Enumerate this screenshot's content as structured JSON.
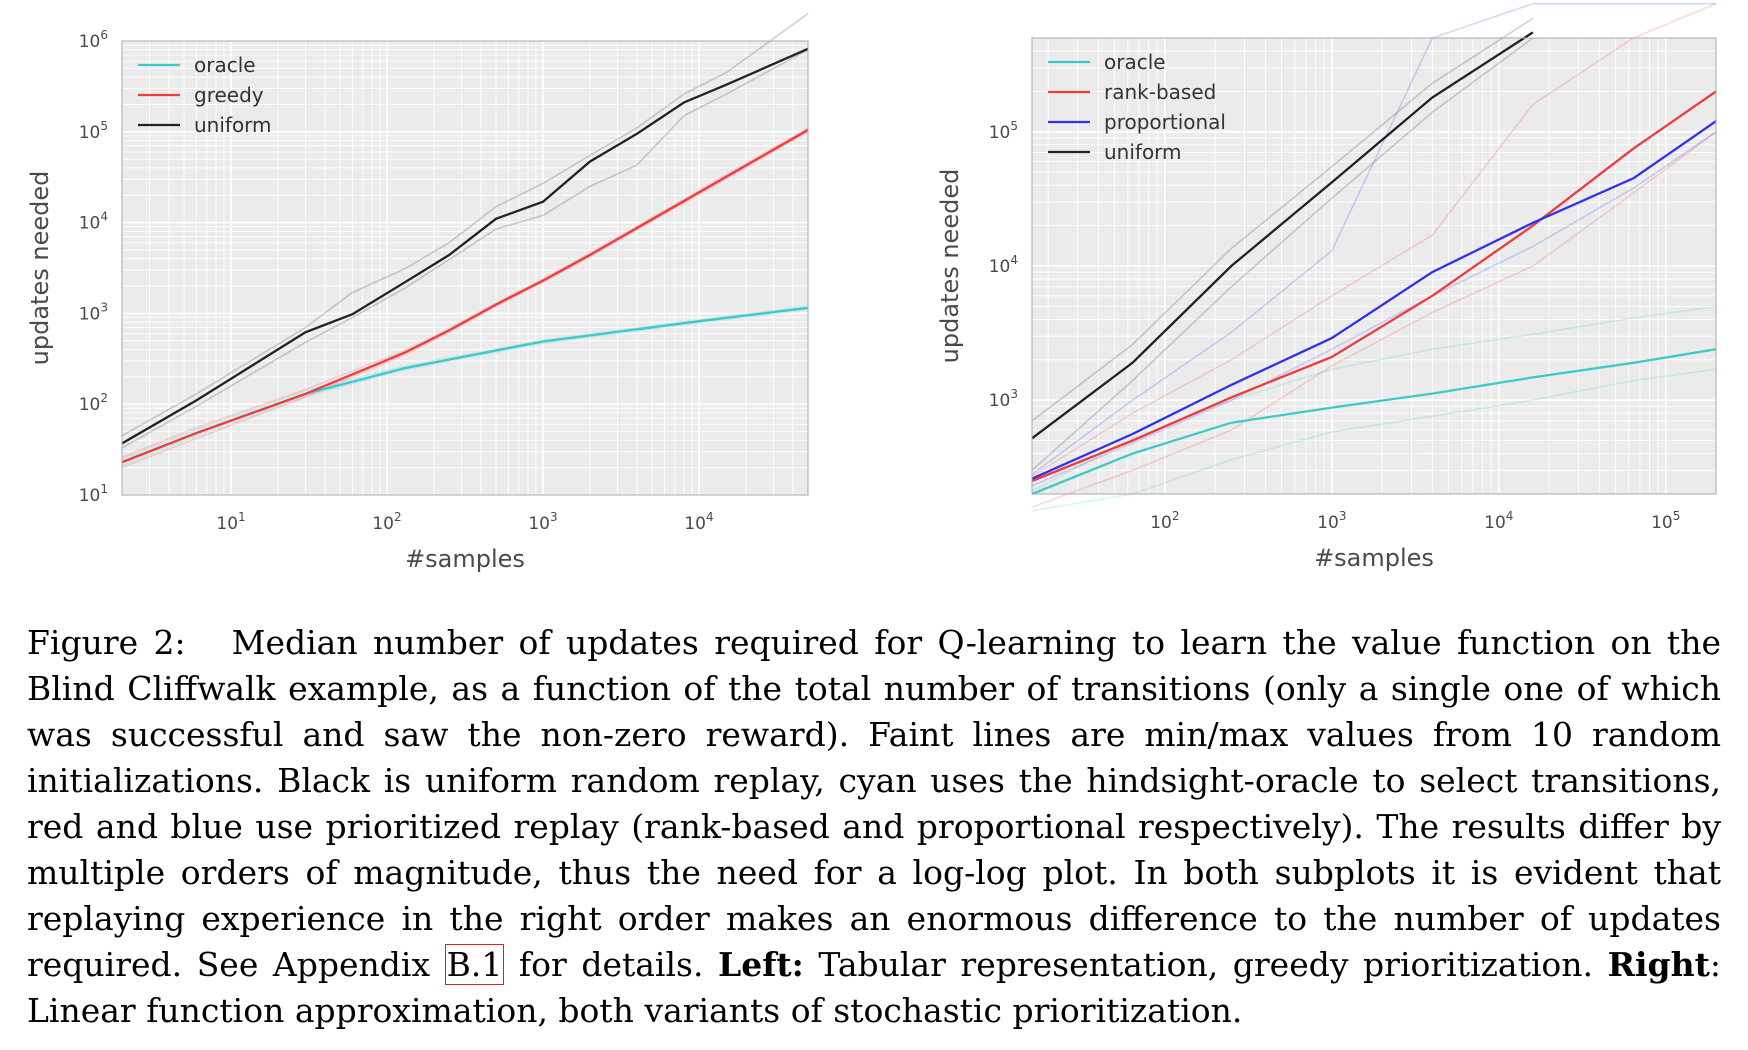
{
  "chart_data": [
    {
      "type": "line",
      "scale": "log-log",
      "grid": true,
      "legend": "top-left",
      "xlabel": "#samples",
      "ylabel": "updates needed",
      "xlim": [
        2,
        50000
      ],
      "ylim": [
        10,
        1000000
      ],
      "xticks": [
        {
          "base": "10",
          "exp": "1",
          "value": 10
        },
        {
          "base": "10",
          "exp": "2",
          "value": 100
        },
        {
          "base": "10",
          "exp": "3",
          "value": 1000
        },
        {
          "base": "10",
          "exp": "4",
          "value": 10000
        }
      ],
      "yticks": [
        {
          "base": "10",
          "exp": "1",
          "value": 10
        },
        {
          "base": "10",
          "exp": "2",
          "value": 100
        },
        {
          "base": "10",
          "exp": "3",
          "value": 1000
        },
        {
          "base": "10",
          "exp": "4",
          "value": 10000
        },
        {
          "base": "10",
          "exp": "5",
          "value": 100000
        },
        {
          "base": "10",
          "exp": "6",
          "value": 1000000
        }
      ],
      "series": [
        {
          "name": "oracle",
          "color": "#3ec9c9",
          "x": [
            2,
            6,
            30,
            130,
            500,
            1000,
            10000,
            50000
          ],
          "y": [
            23,
            48,
            130,
            250,
            390,
            490,
            820,
            1150
          ],
          "min": [
            21,
            45,
            122,
            240,
            375,
            470,
            790,
            1100
          ],
          "max": [
            25,
            52,
            140,
            262,
            405,
            510,
            850,
            1200
          ]
        },
        {
          "name": "greedy",
          "color": "#ee3b3b",
          "x": [
            2,
            6,
            30,
            130,
            250,
            500,
            1000,
            2000,
            50000
          ],
          "y": [
            23,
            48,
            130,
            370,
            650,
            1250,
            2300,
            4400,
            105000
          ],
          "min": [
            20,
            42,
            120,
            350,
            620,
            1200,
            2200,
            4200,
            100000
          ],
          "max": [
            26,
            55,
            145,
            390,
            680,
            1300,
            2400,
            4600,
            110000
          ]
        },
        {
          "name": "uniform",
          "color": "#222222",
          "x": [
            2,
            6,
            30,
            60,
            130,
            250,
            500,
            1000,
            2000,
            4000,
            8000,
            15000,
            50000
          ],
          "y": [
            37,
            110,
            620,
            980,
            2200,
            4400,
            11000,
            17000,
            47000,
            95000,
            210000,
            330000,
            820000
          ],
          "min": [
            33,
            95,
            480,
            900,
            1900,
            3900,
            8500,
            12000,
            25000,
            43000,
            150000,
            260000,
            800000
          ],
          "max": [
            45,
            130,
            700,
            1700,
            3100,
            6000,
            15000,
            27000,
            55000,
            110000,
            260000,
            450000,
            2000000
          ]
        }
      ]
    },
    {
      "type": "line",
      "scale": "log-log",
      "grid": true,
      "legend": "top-left",
      "xlabel": "#samples",
      "ylabel": "updates needed",
      "xlim": [
        16,
        200000
      ],
      "ylim": [
        200,
        500000
      ],
      "xticks": [
        {
          "base": "10",
          "exp": "2",
          "value": 100
        },
        {
          "base": "10",
          "exp": "3",
          "value": 1000
        },
        {
          "base": "10",
          "exp": "4",
          "value": 10000
        },
        {
          "base": "10",
          "exp": "5",
          "value": 100000
        }
      ],
      "yticks": [
        {
          "base": "10",
          "exp": "3",
          "value": 1000
        },
        {
          "base": "10",
          "exp": "4",
          "value": 10000
        },
        {
          "base": "10",
          "exp": "5",
          "value": 100000
        }
      ],
      "series": [
        {
          "name": "oracle",
          "color": "#3ec9c9",
          "x": [
            16,
            64,
            250,
            1000,
            4000,
            16000,
            64000,
            200000
          ],
          "y": [
            200,
            400,
            680,
            880,
            1120,
            1480,
            1900,
            2400
          ],
          "min": [
            150,
            200,
            360,
            580,
            760,
            1000,
            1400,
            1700
          ],
          "max": [
            210,
            520,
            1000,
            1700,
            2400,
            3100,
            4100,
            5000
          ]
        },
        {
          "name": "rank-based",
          "color": "#ee3b3b",
          "x": [
            16,
            64,
            250,
            1000,
            4000,
            16000,
            64000,
            200000
          ],
          "y": [
            250,
            500,
            1050,
            2100,
            6000,
            20000,
            75000,
            200000
          ],
          "min": [
            160,
            300,
            600,
            1800,
            4500,
            10000,
            35000,
            100000
          ],
          "max": [
            270,
            800,
            2000,
            6000,
            17000,
            160000,
            500000,
            900000
          ]
        },
        {
          "name": "proportional",
          "color": "#3030ee",
          "x": [
            16,
            64,
            250,
            1000,
            4000,
            16000,
            64000,
            200000
          ],
          "y": [
            260,
            560,
            1300,
            2900,
            9000,
            21000,
            45000,
            120000
          ],
          "min": [
            230,
            480,
            1000,
            2400,
            6000,
            14000,
            38000,
            100000
          ],
          "max": [
            280,
            1000,
            3200,
            13000,
            500000,
            900000,
            900000,
            900000
          ]
        },
        {
          "name": "uniform",
          "color": "#222222",
          "x": [
            16,
            64,
            250,
            1000,
            4000,
            16000
          ],
          "y": [
            520,
            1900,
            10000,
            42000,
            180000,
            550000
          ],
          "min": [
            300,
            1400,
            7000,
            32000,
            140000,
            500000
          ],
          "max": [
            700,
            2600,
            13500,
            55000,
            230000,
            700000
          ]
        }
      ]
    }
  ],
  "caption": {
    "label": "Figure 2:",
    "text_a": "Median number of updates required for Q-learning to learn the value function on the Blind Cliffwalk example, as a function of the total number of transitions (only a single one of which was successful and saw the non-zero reward).  Faint lines are min/max values from 10 random initializations. Black is uniform random replay, cyan uses the hindsight-oracle to select transitions, red and blue use prioritized replay (rank-based and proportional respectively).  The results differ by multiple orders of magnitude, thus the need for a log-log plot.  In both subplots it is evident that replaying experience in the right order makes an enormous difference to the number of updates required. See Appendix",
    "ref": "B.1",
    "text_b": "for details.",
    "left_label": "Left:",
    "text_c": "Tabular representation, greedy prioritization.",
    "right_label": "Right",
    "text_d": ": Linear function approximation, both variants of stochastic prioritization."
  }
}
